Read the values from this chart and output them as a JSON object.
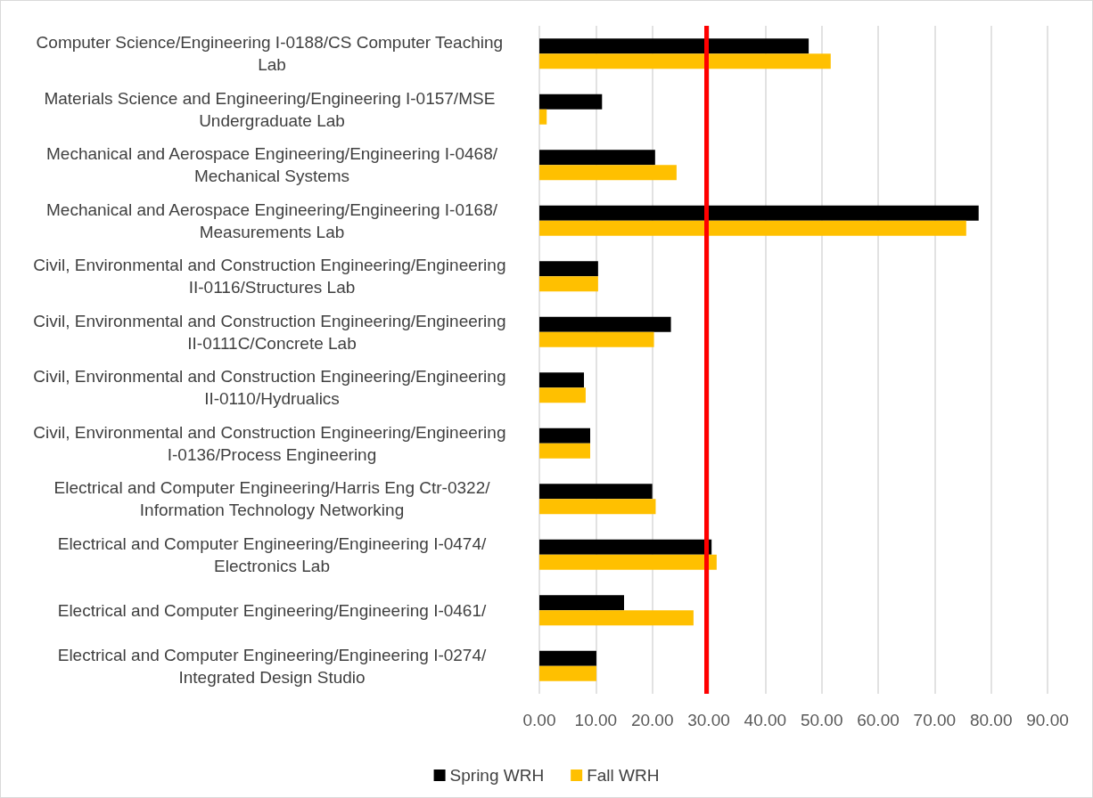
{
  "chart_data": {
    "type": "bar",
    "orientation": "horizontal",
    "categories": [
      "Computer Science/Engineering I-0188/CS Computer Teaching Lab",
      "Materials Science and Engineering/Engineering I-0157/MSE Undergraduate Lab",
      "Mechanical and Aerospace Engineering/Engineering I-0468/Mechanical Systems",
      "Mechanical and Aerospace Engineering/Engineering I-0168/Measurements Lab",
      "Civil, Environmental and Construction Engineering/Engineering II-0116/Structures Lab",
      "Civil, Environmental and Construction Engineering/Engineering II-0111C/Concrete Lab",
      "Civil, Environmental and Construction Engineering/Engineering II-0110/Hydrualics",
      "Civil, Environmental and Construction Engineering/Engineering I-0136/Process Engineering",
      "Electrical and Computer Engineering/Harris Eng Ctr-0322/Information Technology Networking",
      "Electrical and Computer Engineering/Engineering I-0474/Electronics Lab",
      "Electrical and Computer Engineering/Engineering I-0461/",
      "Electrical and Computer Engineering/Engineering I-0274/Integrated Design Studio"
    ],
    "series": [
      {
        "name": "Spring WRH",
        "color": "#000000",
        "values": [
          47.7,
          11.1,
          20.5,
          77.8,
          10.4,
          23.3,
          7.9,
          9.0,
          20.0,
          30.5,
          15.0,
          10.1
        ]
      },
      {
        "name": "Fall WRH",
        "color": "#ffc000",
        "values": [
          51.6,
          1.3,
          24.3,
          75.6,
          10.4,
          20.3,
          8.2,
          9.0,
          20.6,
          31.4,
          27.3,
          10.1
        ]
      }
    ],
    "xlim": [
      0,
      90
    ],
    "xticks": [
      {
        "value": 0,
        "label": "0.00"
      },
      {
        "value": 10,
        "label": "10.00"
      },
      {
        "value": 20,
        "label": "20.00"
      },
      {
        "value": 30,
        "label": "30.00"
      },
      {
        "value": 40,
        "label": "40.00"
      },
      {
        "value": 50,
        "label": "50.00"
      },
      {
        "value": 60,
        "label": "60.00"
      },
      {
        "value": 70,
        "label": "70.00"
      },
      {
        "value": 80,
        "label": "80.00"
      },
      {
        "value": 90,
        "label": "90.00"
      }
    ],
    "ref_lines": [
      {
        "axis": "x",
        "value": 29.5,
        "label": null,
        "color": "#ff0000"
      }
    ],
    "grid": "x",
    "legend": "bottom"
  }
}
